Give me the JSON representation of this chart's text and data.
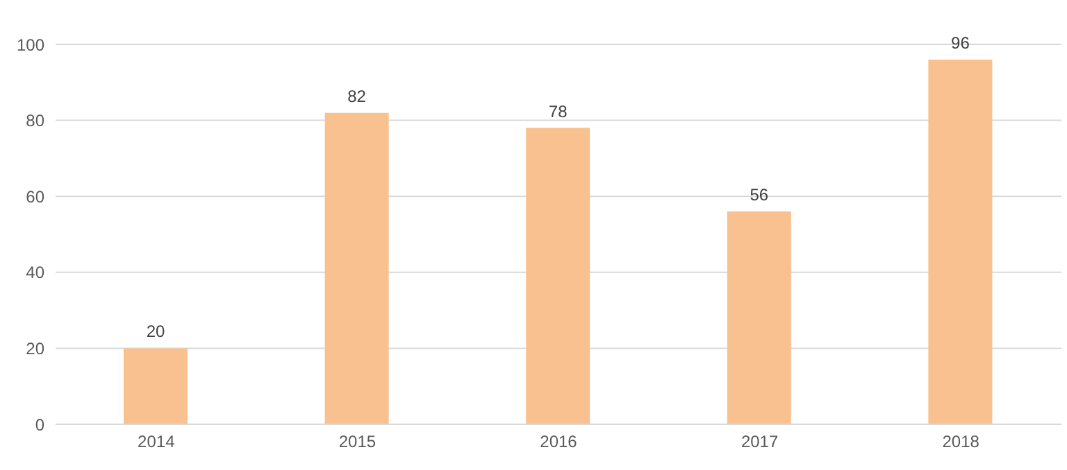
{
  "chart_data": {
    "type": "bar",
    "categories": [
      "2014",
      "2015",
      "2016",
      "2017",
      "2018"
    ],
    "values": [
      20,
      82,
      78,
      56,
      96
    ],
    "color": "#f8c18f",
    "ylim": [
      0,
      100
    ],
    "yticks": [
      0,
      20,
      40,
      60,
      80,
      100
    ],
    "grid": "y",
    "data_labels": true
  }
}
